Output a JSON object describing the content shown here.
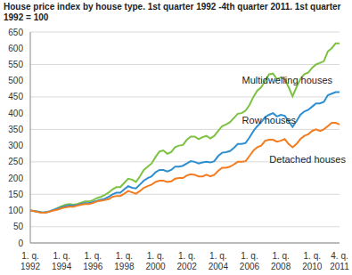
{
  "chart_data": {
    "type": "line",
    "title": "House price index by house type. 1st quarter 1992 -4th quarter 2011. 1st quarter 1992 = 100",
    "categories": [
      "1. q. 1992",
      null,
      null,
      null,
      null,
      null,
      null,
      null,
      "1. q. 1994",
      null,
      null,
      null,
      null,
      null,
      null,
      null,
      "1. q. 1996",
      null,
      null,
      null,
      null,
      null,
      null,
      null,
      "1. q. 1998",
      null,
      null,
      null,
      null,
      null,
      null,
      null,
      "1. q. 2000",
      null,
      null,
      null,
      null,
      null,
      null,
      null,
      "1. q. 2002",
      null,
      null,
      null,
      null,
      null,
      null,
      null,
      "1. q. 2004",
      null,
      null,
      null,
      null,
      null,
      null,
      null,
      "1. q. 2006",
      null,
      null,
      null,
      null,
      null,
      null,
      null,
      "1. q. 2008",
      null,
      null,
      null,
      null,
      null,
      null,
      null,
      "1. q. 2010",
      null,
      null,
      null,
      null,
      null,
      null,
      "4. q. 2011"
    ],
    "series": [
      {
        "name": "Multidwelling houses",
        "color": "#7dc243",
        "values": [
          100,
          99,
          97,
          94,
          93,
          97,
          102,
          108,
          113,
          118,
          120,
          118,
          120,
          124,
          128,
          128,
          132,
          138,
          142,
          148,
          155,
          165,
          172,
          172,
          185,
          198,
          195,
          188,
          205,
          225,
          235,
          245,
          265,
          282,
          285,
          275,
          280,
          295,
          300,
          302,
          318,
          328,
          328,
          320,
          326,
          330,
          322,
          330,
          345,
          360,
          365,
          372,
          385,
          398,
          400,
          408,
          425,
          450,
          470,
          480,
          500,
          520,
          522,
          505,
          510,
          505,
          480,
          452,
          480,
          505,
          520,
          525,
          540,
          550,
          555,
          560,
          590,
          600,
          615,
          615
        ]
      },
      {
        "name": "Row houses",
        "color": "#2e8fcf",
        "values": [
          100,
          98,
          96,
          94,
          95,
          98,
          102,
          106,
          110,
          113,
          116,
          115,
          117,
          120,
          123,
          123,
          126,
          130,
          133,
          136,
          142,
          150,
          155,
          155,
          165,
          175,
          170,
          168,
          180,
          192,
          200,
          205,
          218,
          225,
          225,
          220,
          225,
          235,
          235,
          238,
          245,
          252,
          250,
          245,
          248,
          250,
          248,
          252,
          268,
          278,
          280,
          283,
          293,
          305,
          305,
          308,
          325,
          345,
          360,
          372,
          388,
          395,
          400,
          390,
          395,
          392,
          375,
          358,
          375,
          395,
          405,
          410,
          420,
          430,
          430,
          435,
          455,
          460,
          465,
          465
        ]
      },
      {
        "name": "Detached houses",
        "color": "#f47c20",
        "values": [
          100,
          98,
          95,
          93,
          94,
          97,
          100,
          103,
          107,
          110,
          112,
          112,
          115,
          118,
          120,
          120,
          123,
          128,
          130,
          132,
          135,
          142,
          145,
          145,
          152,
          160,
          156,
          152,
          160,
          170,
          175,
          180,
          188,
          192,
          192,
          188,
          190,
          198,
          200,
          200,
          208,
          212,
          210,
          205,
          205,
          210,
          205,
          210,
          222,
          232,
          232,
          235,
          242,
          250,
          250,
          252,
          268,
          285,
          295,
          300,
          315,
          318,
          318,
          312,
          315,
          320,
          305,
          295,
          305,
          320,
          330,
          335,
          345,
          350,
          345,
          350,
          360,
          370,
          370,
          365
        ]
      }
    ],
    "ylim": [
      0,
      650
    ],
    "yticks": [
      0,
      50,
      100,
      150,
      200,
      250,
      300,
      350,
      400,
      450,
      500,
      550,
      600,
      650
    ],
    "grid": true
  }
}
